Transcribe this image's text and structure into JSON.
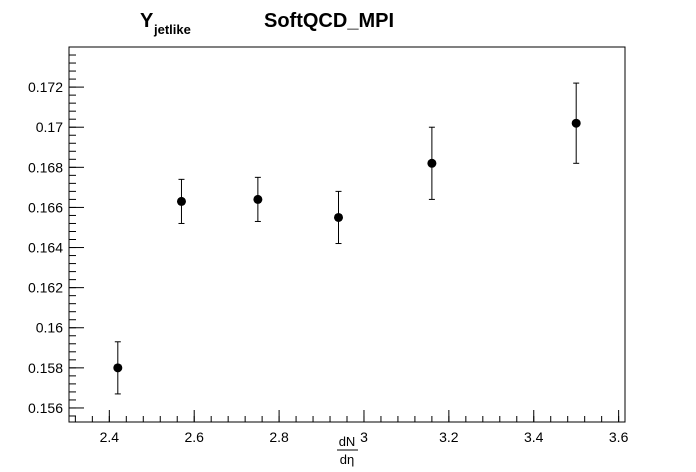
{
  "chart_data": {
    "type": "scatter",
    "title_main": "Y",
    "title_sub": "jetlike",
    "title_right": "SoftQCD_MPI",
    "xlabel_num": "dN",
    "xlabel_den": "dη",
    "xlim": [
      2.305,
      3.615
    ],
    "ylim": [
      0.1553,
      0.174
    ],
    "x_ticks": [
      "2.4",
      "2.6",
      "2.8",
      "3",
      "3.2",
      "3.4",
      "3.6"
    ],
    "y_ticks": [
      "0.156",
      "0.158",
      "0.16",
      "0.162",
      "0.164",
      "0.166",
      "0.168",
      "0.17",
      "0.172"
    ],
    "points": [
      {
        "x": 2.42,
        "y": 0.158,
        "err": 0.0013
      },
      {
        "x": 2.57,
        "y": 0.1663,
        "err": 0.0011
      },
      {
        "x": 2.75,
        "y": 0.1664,
        "err": 0.0011
      },
      {
        "x": 2.94,
        "y": 0.1655,
        "err": 0.0013
      },
      {
        "x": 3.16,
        "y": 0.1682,
        "err": 0.0018
      },
      {
        "x": 3.5,
        "y": 0.1702,
        "err": 0.002
      }
    ],
    "marker_color": "#000000",
    "grid": false
  }
}
